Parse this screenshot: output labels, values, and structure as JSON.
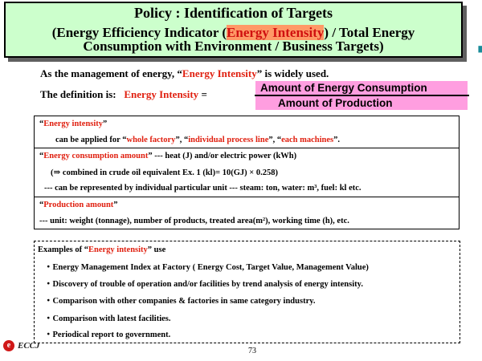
{
  "title": {
    "line1": "Policy : Identification of Targets",
    "line2_pre": "(Energy Efficiency Indicator (",
    "line2_hl": "Energy Intensity",
    "line2_post": ") / Total Energy",
    "line3": "Consumption with Environment / Business Targets)"
  },
  "intro": {
    "pre": "As the management of energy, “",
    "term": "Energy Intensity",
    "post": "” is widely used."
  },
  "definition": {
    "pre": "The definition is:",
    "term": "Energy Intensity",
    "eq": "=",
    "numerator": "Amount of Energy Consumption",
    "denominator": "Amount of Production"
  },
  "box1": {
    "head_open": "“",
    "head_term": "Energy intensity",
    "head_close": "”",
    "line_pre": "can be applied for “",
    "item1": "whole factory",
    "sep1": "”, “",
    "item2": "individual process line",
    "sep2": "”, “",
    "item3": "each machines",
    "line_post": "”."
  },
  "box2": {
    "head_open": "“",
    "head_term": "Energy consumption amount",
    "head_rest": "” --- heat (J) and/or electric power (kWh)",
    "line2": "(⇒ combined in crude oil equivalent  Ex. 1 (kl)= 10(GJ) × 0.258)",
    "line3": "---  can be represented by individual particular unit --- steam: ton, water: m³, fuel: kl etc."
  },
  "box3": {
    "head_open": "“",
    "head_term": "Production amount",
    "head_close": "”",
    "line2": "--- unit: weight (tonnage), number of products, treated area(m²), working time (h), etc."
  },
  "examples": {
    "head_pre": "Examples of “",
    "head_term": "Energy intensity",
    "head_post": "” use",
    "items": [
      "・Energy Management Index at Factory ( Energy Cost, Target Value, Management Value)",
      "・Discovery of trouble of operation and/or facilities by trend analysis of energy intensity.",
      "・Comparison with other companies & factories in same category industry.",
      "・Comparison with latest facilities.",
      "・Periodical report to government."
    ]
  },
  "footer": {
    "logo_text": "ECCJ",
    "page_number": "73"
  },
  "colors": {
    "title_bg": "#ccffcc",
    "highlight_bg": "#ff9966",
    "fraction_bg": "#ff9ee0",
    "accent_red": "#e02010"
  }
}
